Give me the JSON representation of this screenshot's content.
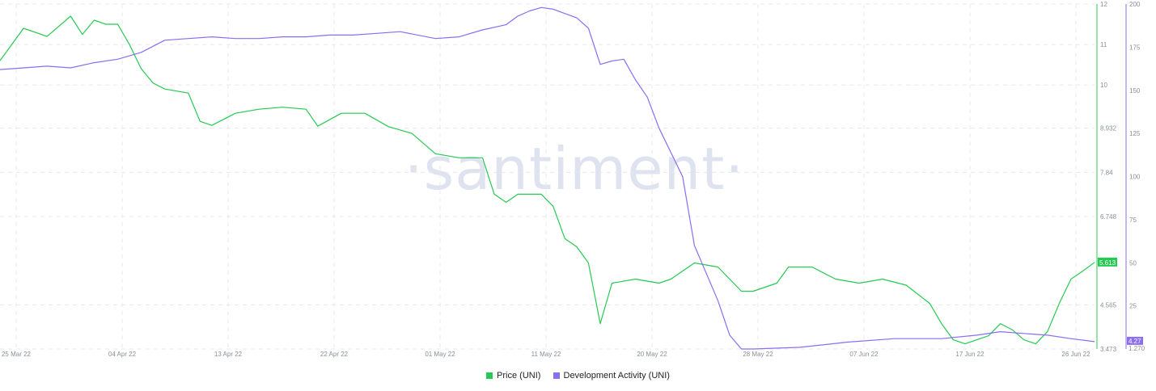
{
  "watermark": "·santiment·",
  "chart_data": {
    "type": "line",
    "x_labels": [
      "25 Mar 22",
      "04 Apr 22",
      "13 Apr 22",
      "22 Apr 22",
      "01 May 22",
      "11 May 22",
      "20 May 22",
      "28 May 22",
      "07 Jun 22",
      "17 Jun 22",
      "26 Jun 22"
    ],
    "x_range": [
      "2022-03-25",
      "2022-06-26"
    ],
    "price_axis": {
      "ticks": [
        "12",
        "11",
        "10",
        "8.932",
        "7.84",
        "6.748",
        "4.565",
        "3.473"
      ],
      "range": [
        3.473,
        12
      ],
      "color": "#26c953"
    },
    "dev_axis": {
      "ticks": [
        "200",
        "175",
        "150",
        "125",
        "100",
        "75",
        "50",
        "25"
      ],
      "range": [
        0,
        200
      ],
      "color": "#8c6cf0"
    },
    "last_price": "5.613",
    "last_dev": "4.27",
    "dev_axis_extra": "1.270",
    "series": [
      {
        "name": "Price (UNI)",
        "axis": "price",
        "color": "#26c953",
        "points": [
          [
            "2022-03-25",
            10.6
          ],
          [
            "2022-03-27",
            11.4
          ],
          [
            "2022-03-29",
            11.2
          ],
          [
            "2022-03-31",
            11.7
          ],
          [
            "2022-04-01",
            11.25
          ],
          [
            "2022-04-02",
            11.6
          ],
          [
            "2022-04-03",
            11.5
          ],
          [
            "2022-04-04",
            11.5
          ],
          [
            "2022-04-05",
            11.0
          ],
          [
            "2022-04-06",
            10.4
          ],
          [
            "2022-04-07",
            10.05
          ],
          [
            "2022-04-08",
            9.9
          ],
          [
            "2022-04-10",
            9.8
          ],
          [
            "2022-04-11",
            9.1
          ],
          [
            "2022-04-12",
            9.0
          ],
          [
            "2022-04-14",
            9.3
          ],
          [
            "2022-04-16",
            9.4
          ],
          [
            "2022-04-18",
            9.45
          ],
          [
            "2022-04-20",
            9.4
          ],
          [
            "2022-04-21",
            8.98
          ],
          [
            "2022-04-23",
            9.3
          ],
          [
            "2022-04-25",
            9.3
          ],
          [
            "2022-04-27",
            8.97
          ],
          [
            "2022-04-29",
            8.8
          ],
          [
            "2022-05-01",
            8.3
          ],
          [
            "2022-05-03",
            8.2
          ],
          [
            "2022-05-05",
            8.2
          ],
          [
            "2022-05-06",
            7.3
          ],
          [
            "2022-05-07",
            7.1
          ],
          [
            "2022-05-08",
            7.3
          ],
          [
            "2022-05-09",
            7.3
          ],
          [
            "2022-05-10",
            7.3
          ],
          [
            "2022-05-11",
            7.0
          ],
          [
            "2022-05-12",
            6.2
          ],
          [
            "2022-05-13",
            6.0
          ],
          [
            "2022-05-14",
            5.6
          ],
          [
            "2022-05-15",
            4.1
          ],
          [
            "2022-05-16",
            5.1
          ],
          [
            "2022-05-18",
            5.2
          ],
          [
            "2022-05-20",
            5.1
          ],
          [
            "2022-05-21",
            5.2
          ],
          [
            "2022-05-23",
            5.6
          ],
          [
            "2022-05-25",
            5.5
          ],
          [
            "2022-05-27",
            4.9
          ],
          [
            "2022-05-28",
            4.9
          ],
          [
            "2022-05-30",
            5.1
          ],
          [
            "2022-05-31",
            5.5
          ],
          [
            "2022-06-02",
            5.5
          ],
          [
            "2022-06-04",
            5.2
          ],
          [
            "2022-06-06",
            5.1
          ],
          [
            "2022-06-08",
            5.2
          ],
          [
            "2022-06-10",
            5.05
          ],
          [
            "2022-06-12",
            4.6
          ],
          [
            "2022-06-13",
            4.1
          ],
          [
            "2022-06-14",
            3.7
          ],
          [
            "2022-06-15",
            3.6
          ],
          [
            "2022-06-17",
            3.8
          ],
          [
            "2022-06-18",
            4.1
          ],
          [
            "2022-06-19",
            3.95
          ],
          [
            "2022-06-20",
            3.7
          ],
          [
            "2022-06-21",
            3.6
          ],
          [
            "2022-06-22",
            3.9
          ],
          [
            "2022-06-23",
            4.6
          ],
          [
            "2022-06-24",
            5.2
          ],
          [
            "2022-06-25",
            5.4
          ],
          [
            "2022-06-26",
            5.613
          ]
        ]
      },
      {
        "name": "Development Activity (UNI)",
        "axis": "dev",
        "color": "#8c6cf0",
        "points": [
          [
            "2022-03-25",
            162
          ],
          [
            "2022-03-29",
            164
          ],
          [
            "2022-03-31",
            163
          ],
          [
            "2022-04-02",
            166
          ],
          [
            "2022-04-04",
            168
          ],
          [
            "2022-04-06",
            172
          ],
          [
            "2022-04-08",
            179
          ],
          [
            "2022-04-10",
            180
          ],
          [
            "2022-04-12",
            181
          ],
          [
            "2022-04-14",
            180
          ],
          [
            "2022-04-16",
            180
          ],
          [
            "2022-04-18",
            181
          ],
          [
            "2022-04-20",
            181
          ],
          [
            "2022-04-22",
            182
          ],
          [
            "2022-04-24",
            182
          ],
          [
            "2022-04-26",
            183
          ],
          [
            "2022-04-28",
            184
          ],
          [
            "2022-05-01",
            180
          ],
          [
            "2022-05-03",
            181
          ],
          [
            "2022-05-05",
            185
          ],
          [
            "2022-05-07",
            188
          ],
          [
            "2022-05-08",
            193
          ],
          [
            "2022-05-09",
            196
          ],
          [
            "2022-05-10",
            198
          ],
          [
            "2022-05-11",
            197
          ],
          [
            "2022-05-13",
            192
          ],
          [
            "2022-05-14",
            186
          ],
          [
            "2022-05-15",
            165
          ],
          [
            "2022-05-16",
            167
          ],
          [
            "2022-05-17",
            168
          ],
          [
            "2022-05-18",
            156
          ],
          [
            "2022-05-19",
            146
          ],
          [
            "2022-05-20",
            128
          ],
          [
            "2022-05-22",
            100
          ],
          [
            "2022-05-23",
            60
          ],
          [
            "2022-05-25",
            28
          ],
          [
            "2022-05-26",
            8
          ],
          [
            "2022-05-27",
            0
          ],
          [
            "2022-05-28",
            0
          ],
          [
            "2022-06-01",
            1
          ],
          [
            "2022-06-05",
            4
          ],
          [
            "2022-06-09",
            6
          ],
          [
            "2022-06-13",
            6
          ],
          [
            "2022-06-16",
            8
          ],
          [
            "2022-06-18",
            10
          ],
          [
            "2022-06-20",
            9
          ],
          [
            "2022-06-22",
            8
          ],
          [
            "2022-06-24",
            6
          ],
          [
            "2022-06-26",
            4.27
          ]
        ]
      }
    ]
  }
}
